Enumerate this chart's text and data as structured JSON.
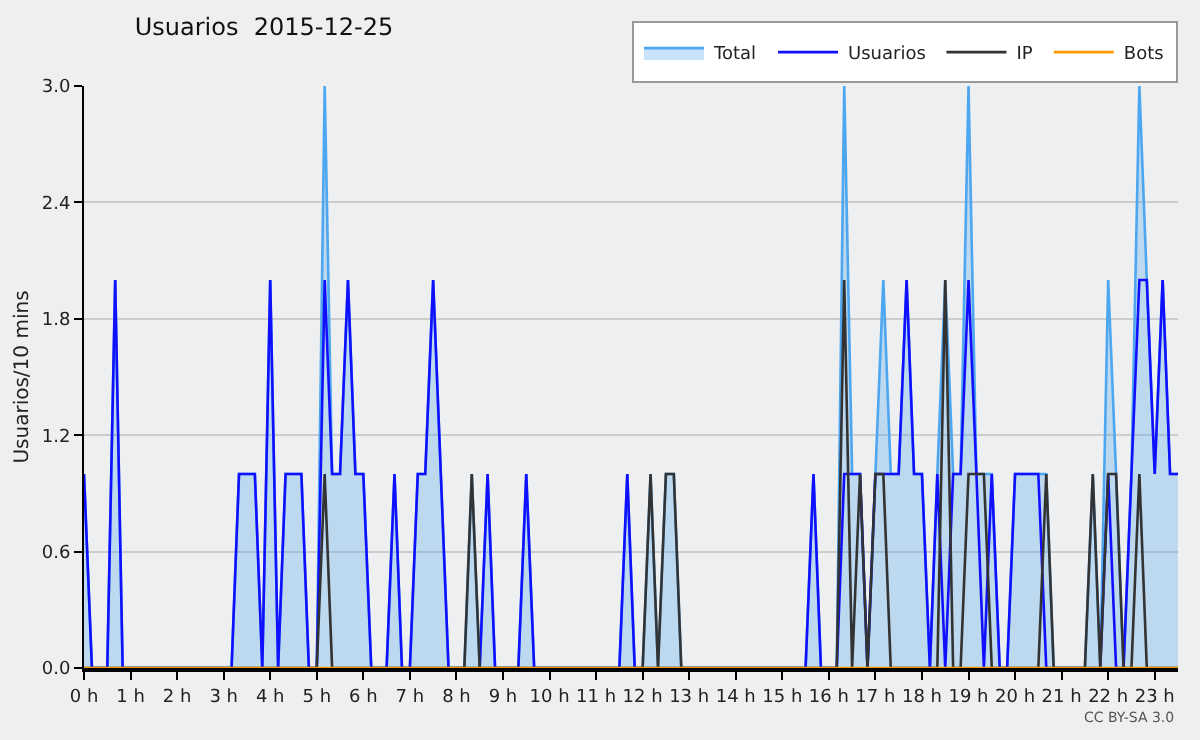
{
  "chart_data": {
    "type": "line",
    "title": "Usuarios  2015-12-25",
    "ylabel": "Usuarios/10 mins",
    "xlim": [
      0,
      23.5
    ],
    "ylim": [
      0,
      3
    ],
    "xticks": [
      {
        "value": 0,
        "label": "0 h"
      },
      {
        "value": 1,
        "label": "1 h"
      },
      {
        "value": 2,
        "label": "2 h"
      },
      {
        "value": 3,
        "label": "3 h"
      },
      {
        "value": 4,
        "label": "4 h"
      },
      {
        "value": 5,
        "label": "5 h"
      },
      {
        "value": 6,
        "label": "6 h"
      },
      {
        "value": 7,
        "label": "7 h"
      },
      {
        "value": 8,
        "label": "8 h"
      },
      {
        "value": 9,
        "label": "9 h"
      },
      {
        "value": 10,
        "label": "10 h"
      },
      {
        "value": 11,
        "label": "11 h"
      },
      {
        "value": 12,
        "label": "12 h"
      },
      {
        "value": 13,
        "label": "13 h"
      },
      {
        "value": 14,
        "label": "14 h"
      },
      {
        "value": 15,
        "label": "15 h"
      },
      {
        "value": 16,
        "label": "16 h"
      },
      {
        "value": 17,
        "label": "17 h"
      },
      {
        "value": 18,
        "label": "18 h"
      },
      {
        "value": 19,
        "label": "19 h"
      },
      {
        "value": 20,
        "label": "20 h"
      },
      {
        "value": 21,
        "label": "21 h"
      },
      {
        "value": 22,
        "label": "22 h"
      },
      {
        "value": 23,
        "label": "23 h"
      }
    ],
    "yticks": [
      {
        "value": 0,
        "label": "0.0"
      },
      {
        "value": 0.6,
        "label": "0.6"
      },
      {
        "value": 1.2,
        "label": "1.2"
      },
      {
        "value": 1.8,
        "label": "1.8"
      },
      {
        "value": 2.4,
        "label": "2.4"
      },
      {
        "value": 3,
        "label": "3.0"
      }
    ],
    "grid": "y",
    "legend": "top right",
    "marker": "none",
    "annotations": [
      "CC BY-SA 3.0"
    ],
    "series": [
      {
        "name": "Total",
        "type": "area",
        "color": "#4da6f0",
        "x": [
          0,
          0.17,
          0.5,
          0.67,
          0.83,
          3.17,
          3.33,
          3.67,
          3.83,
          4,
          4.17,
          4.33,
          4.67,
          4.83,
          5,
          5.17,
          5.33,
          5.5,
          5.67,
          5.83,
          6,
          6.17,
          6.5,
          6.67,
          6.83,
          7,
          7.17,
          7.33,
          7.5,
          7.83,
          8.17,
          8.33,
          8.5,
          8.67,
          8.83,
          9.33,
          9.5,
          9.67,
          11.5,
          11.67,
          11.83,
          12,
          12.17,
          12.33,
          12.5,
          12.67,
          12.83,
          15.5,
          15.67,
          15.83,
          16.17,
          16.33,
          16.5,
          16.67,
          16.83,
          17,
          17.17,
          17.33,
          17.5,
          17.67,
          17.83,
          18,
          18.17,
          18.33,
          18.5,
          18.67,
          18.83,
          19,
          19.17,
          19.33,
          19.5,
          19.67,
          19.83,
          20,
          20.5,
          20.67,
          20.83,
          21.5,
          21.67,
          21.83,
          22,
          22.17,
          22.33,
          22.5,
          22.67,
          22.83,
          23,
          23.17,
          23.33,
          23.5
        ],
        "values": [
          1,
          0,
          0,
          2,
          0,
          0,
          1,
          1,
          0,
          2,
          0,
          1,
          1,
          0,
          0,
          3,
          1,
          1,
          2,
          1,
          1,
          0,
          0,
          1,
          0,
          0,
          1,
          1,
          2,
          0,
          0,
          1,
          0,
          1,
          0,
          0,
          1,
          0,
          0,
          1,
          0,
          0,
          1,
          0,
          1,
          1,
          0,
          0,
          1,
          0,
          0,
          3,
          1,
          1,
          0,
          1,
          2,
          1,
          1,
          2,
          1,
          1,
          0,
          1,
          2,
          1,
          1,
          3,
          1,
          1,
          1,
          0,
          0,
          1,
          1,
          1,
          0,
          0,
          1,
          0,
          2,
          1,
          0,
          1,
          3,
          2,
          1,
          2,
          1,
          1
        ]
      },
      {
        "name": "Usuarios",
        "color": "#1010ff",
        "x": [
          0,
          0.17,
          0.5,
          0.67,
          0.83,
          3.17,
          3.33,
          3.67,
          3.83,
          4,
          4.17,
          4.33,
          4.67,
          4.83,
          5,
          5.17,
          5.33,
          5.5,
          5.67,
          5.83,
          6,
          6.17,
          6.5,
          6.67,
          6.83,
          7,
          7.17,
          7.33,
          7.5,
          7.83,
          8.5,
          8.67,
          8.83,
          9.33,
          9.5,
          9.67,
          11.5,
          11.67,
          11.83,
          15.5,
          15.67,
          15.83,
          16.17,
          16.33,
          16.5,
          16.67,
          16.83,
          17,
          17.17,
          17.33,
          17.5,
          17.67,
          17.83,
          18,
          18.17,
          18.33,
          18.5,
          18.67,
          18.83,
          19,
          19.17,
          19.33,
          19.5,
          19.67,
          19.83,
          20,
          20.5,
          20.67,
          21.83,
          22,
          22.17,
          22.33,
          22.5,
          22.67,
          22.83,
          23,
          23.17,
          23.33,
          23.5
        ],
        "values": [
          1,
          0,
          0,
          2,
          0,
          0,
          1,
          1,
          0,
          2,
          0,
          1,
          1,
          0,
          0,
          2,
          1,
          1,
          2,
          1,
          1,
          0,
          0,
          1,
          0,
          0,
          1,
          1,
          2,
          0,
          0,
          1,
          0,
          0,
          1,
          0,
          0,
          1,
          0,
          0,
          1,
          0,
          0,
          1,
          1,
          1,
          0,
          1,
          1,
          1,
          1,
          2,
          1,
          1,
          0,
          1,
          0,
          1,
          1,
          2,
          1,
          0,
          1,
          0,
          0,
          1,
          1,
          0,
          0,
          1,
          0,
          0,
          1,
          2,
          2,
          1,
          2,
          1,
          1
        ]
      },
      {
        "name": "IP",
        "color": "#333333",
        "x": [
          0,
          5,
          5.17,
          5.33,
          8.17,
          8.33,
          8.5,
          12,
          12.17,
          12.33,
          12.5,
          12.67,
          12.83,
          16.17,
          16.33,
          16.5,
          16.67,
          16.83,
          17,
          17.17,
          17.33,
          18.33,
          18.5,
          18.67,
          18.83,
          19,
          19.17,
          19.33,
          19.5,
          20.5,
          20.67,
          20.83,
          21.5,
          21.67,
          21.83,
          22,
          22.17,
          22.33,
          22.5,
          22.67,
          22.83,
          23.5
        ],
        "values": [
          0,
          0,
          1,
          0,
          0,
          1,
          0,
          0,
          1,
          0,
          1,
          1,
          0,
          0,
          2,
          0,
          1,
          0,
          1,
          1,
          0,
          0,
          2,
          0,
          0,
          1,
          1,
          1,
          0,
          0,
          1,
          0,
          0,
          1,
          0,
          1,
          1,
          0,
          0,
          1,
          0,
          0
        ]
      },
      {
        "name": "Bots",
        "color": "#ff9900",
        "x": [
          0,
          23.5
        ],
        "values": [
          0,
          0
        ]
      }
    ]
  }
}
